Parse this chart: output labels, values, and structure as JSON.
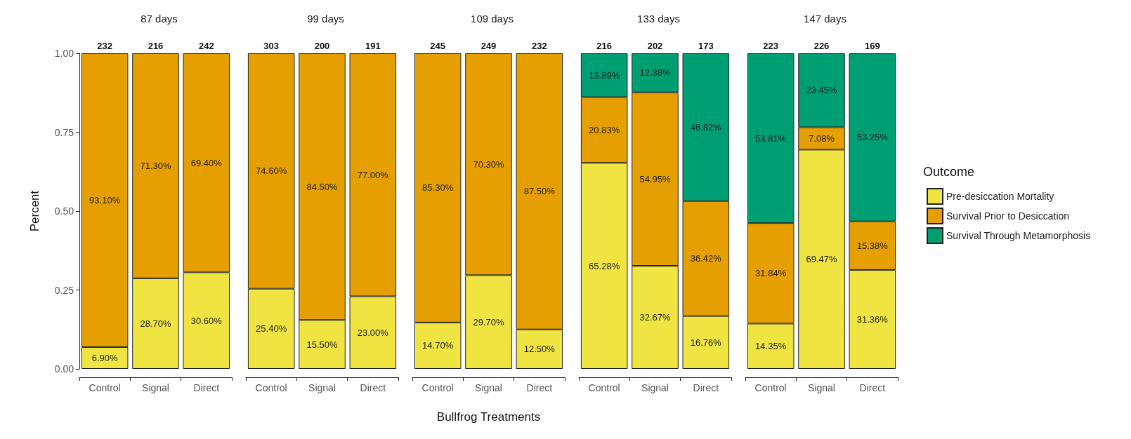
{
  "chart_data": [
    {
      "type": "bar",
      "stacked": true,
      "title": "87 days",
      "ylabel": "Percent",
      "categories": [
        "Control",
        "Signal",
        "Direct"
      ],
      "ylim": [
        0,
        1
      ],
      "yticks": [
        {
          "value": 0,
          "label": "0.00"
        },
        {
          "value": 0.25,
          "label": "0.25"
        },
        {
          "value": 0.5,
          "label": "0.50"
        },
        {
          "value": 0.75,
          "label": "0.75"
        },
        {
          "value": 1,
          "label": "1.00"
        }
      ],
      "annotations": [
        {
          "text": "232",
          "x": "Control",
          "y": 1
        },
        {
          "text": "216",
          "x": "Signal",
          "y": 1
        },
        {
          "text": "242",
          "x": "Direct",
          "y": 1
        }
      ],
      "series": [
        {
          "color": "#f0e442",
          "values": [
            0.069,
            0.287,
            0.306
          ],
          "value_labels": [
            "6.90%",
            "28.70%",
            "30.60%"
          ]
        },
        {
          "color": "#e69f00",
          "values": [
            0.931,
            0.713,
            0.694
          ],
          "value_labels": [
            "93.10%",
            "71.30%",
            "69.40%"
          ]
        }
      ]
    },
    {
      "type": "bar",
      "stacked": true,
      "title": "99 days",
      "categories": [
        "Control",
        "Signal",
        "Direct"
      ],
      "ylim": [
        0,
        1
      ],
      "tick_labels": "x",
      "annotations": [
        {
          "text": "303",
          "x": "Control",
          "y": 1
        },
        {
          "text": "200",
          "x": "Signal",
          "y": 1
        },
        {
          "text": "191",
          "x": "Direct",
          "y": 1
        }
      ],
      "series": [
        {
          "color": "#f0e442",
          "values": [
            0.254,
            0.155,
            0.23
          ],
          "value_labels": [
            "25.40%",
            "15.50%",
            "23.00%"
          ]
        },
        {
          "color": "#e69f00",
          "values": [
            0.746,
            0.845,
            0.77
          ],
          "value_labels": [
            "74.60%",
            "84.50%",
            "77.00%"
          ]
        }
      ]
    },
    {
      "type": "bar",
      "stacked": true,
      "title": "109 days",
      "xlabel": "Bullfrog Treatments",
      "categories": [
        "Control",
        "Signal",
        "Direct"
      ],
      "ylim": [
        0,
        1
      ],
      "tick_labels": "x",
      "annotations": [
        {
          "text": "245",
          "x": "Control",
          "y": 1
        },
        {
          "text": "249",
          "x": "Signal",
          "y": 1
        },
        {
          "text": "232",
          "x": "Direct",
          "y": 1
        }
      ],
      "series": [
        {
          "color": "#f0e442",
          "values": [
            0.147,
            0.297,
            0.125
          ],
          "value_labels": [
            "14.70%",
            "29.70%",
            "12.50%"
          ]
        },
        {
          "color": "#e69f00",
          "values": [
            0.853,
            0.703,
            0.875
          ],
          "value_labels": [
            "85.30%",
            "70.30%",
            "87.50%"
          ]
        }
      ]
    },
    {
      "type": "bar",
      "stacked": true,
      "title": "133 days",
      "categories": [
        "Control",
        "Signal",
        "Direct"
      ],
      "ylim": [
        0,
        1
      ],
      "tick_labels": "x",
      "annotations": [
        {
          "text": "216",
          "x": "Control",
          "y": 1
        },
        {
          "text": "202",
          "x": "Signal",
          "y": 1
        },
        {
          "text": "173",
          "x": "Direct",
          "y": 1
        }
      ],
      "series": [
        {
          "color": "#f0e442",
          "values": [
            0.6528,
            0.3267,
            0.1676
          ],
          "value_labels": [
            "65.28%",
            "32.67%",
            "16.76%"
          ]
        },
        {
          "color": "#e69f00",
          "values": [
            0.2083,
            0.5495,
            0.3642
          ],
          "value_labels": [
            "20.83%",
            "54.95%",
            "36.42%"
          ]
        },
        {
          "color": "#009e73",
          "values": [
            0.1389,
            0.1238,
            0.4682
          ],
          "value_labels": [
            "13.89%",
            "12.38%",
            "46.82%"
          ]
        }
      ]
    },
    {
      "type": "bar",
      "stacked": true,
      "title": "147 days",
      "categories": [
        "Control",
        "Signal",
        "Direct"
      ],
      "ylim": [
        0,
        1
      ],
      "tick_labels": "x",
      "annotations": [
        {
          "text": "223",
          "x": "Control",
          "y": 1
        },
        {
          "text": "226",
          "x": "Signal",
          "y": 1
        },
        {
          "text": "169",
          "x": "Direct",
          "y": 1
        }
      ],
      "legend": "right",
      "legend_title": "Outcome",
      "series": [
        {
          "name": "Pre-desiccation Mortality",
          "color": "#f0e442",
          "values": [
            0.1435,
            0.6947,
            0.3136
          ],
          "value_labels": [
            "14.35%",
            "69.47%",
            "31.36%"
          ]
        },
        {
          "name": "Survival Prior to Desiccation",
          "color": "#e69f00",
          "values": [
            0.3184,
            0.0708,
            0.1538
          ],
          "value_labels": [
            "31.84%",
            "7.08%",
            "15.38%"
          ]
        },
        {
          "name": "Survival Through Metamorphosis",
          "color": "#009e73",
          "values": [
            0.5381,
            0.2345,
            0.5325
          ],
          "value_labels": [
            "53.81%",
            "23.45%",
            "53.25%"
          ]
        }
      ]
    }
  ]
}
